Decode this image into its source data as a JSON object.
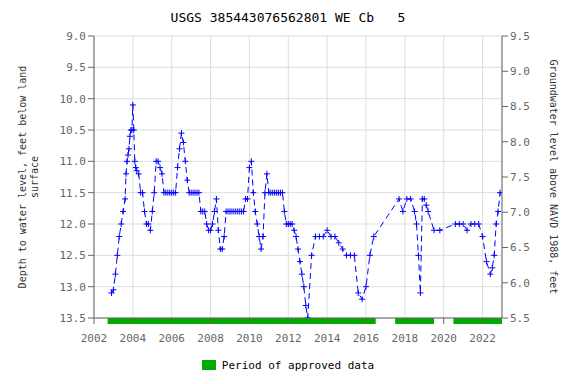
{
  "chart_data": {
    "type": "line",
    "title": "USGS 385443076562801 WE Cb   5",
    "ylabel": "Depth to water level, feet below land\nsurface",
    "y2label": "Groundwater level above NAVD 1988, feet",
    "xlim": [
      2002,
      2023
    ],
    "xticks": [
      2002,
      2004,
      2006,
      2008,
      2010,
      2012,
      2014,
      2016,
      2018,
      2020,
      2022
    ],
    "ylim": [
      13.5,
      9.0
    ],
    "yticks": [
      {
        "value": 9,
        "label": "9.0"
      },
      9.5,
      {
        "value": 10,
        "label": "10.0"
      },
      10.5,
      {
        "value": 11,
        "label": "11.0"
      },
      11.5,
      {
        "value": 12,
        "label": "12.0"
      },
      12.5,
      {
        "value": 13,
        "label": "13.0"
      },
      13.5
    ],
    "y2lim": [
      5.5,
      9.5
    ],
    "y2ticks": [
      9.5,
      {
        "value": 9,
        "label": "9.0"
      },
      8.5,
      {
        "value": 8,
        "label": "8.0"
      },
      7.5,
      {
        "value": 7,
        "label": "7.0"
      },
      6.5,
      {
        "value": 6,
        "label": "6.0"
      },
      5.5
    ],
    "grid": true,
    "legend": "bottom",
    "x": [
      2002.9,
      2003.0,
      2003.1,
      2003.2,
      2003.3,
      2003.4,
      2003.5,
      2003.6,
      2003.65,
      2003.7,
      2003.75,
      2003.8,
      2003.85,
      2003.9,
      2003.95,
      2004.0,
      2004.05,
      2004.1,
      2004.15,
      2004.2,
      2004.3,
      2004.4,
      2004.5,
      2004.6,
      2004.7,
      2004.8,
      2004.9,
      2005.0,
      2005.1,
      2005.2,
      2005.3,
      2005.4,
      2005.5,
      2005.6,
      2005.7,
      2005.8,
      2005.9,
      2006.0,
      2006.1,
      2006.2,
      2006.3,
      2006.4,
      2006.5,
      2006.6,
      2006.7,
      2006.8,
      2006.9,
      2007.0,
      2007.1,
      2007.2,
      2007.3,
      2007.4,
      2007.5,
      2007.6,
      2007.7,
      2007.8,
      2007.9,
      2008.0,
      2008.1,
      2008.2,
      2008.3,
      2008.4,
      2008.5,
      2008.6,
      2008.7,
      2008.8,
      2008.9,
      2009.0,
      2009.1,
      2009.2,
      2009.3,
      2009.4,
      2009.5,
      2009.6,
      2009.7,
      2009.8,
      2009.9,
      2010.0,
      2010.1,
      2010.2,
      2010.3,
      2010.4,
      2010.5,
      2010.6,
      2010.7,
      2010.8,
      2010.9,
      2011.0,
      2011.1,
      2011.2,
      2011.3,
      2011.4,
      2011.5,
      2011.6,
      2011.7,
      2011.8,
      2011.9,
      2012.0,
      2012.1,
      2012.2,
      2012.3,
      2012.4,
      2012.5,
      2012.6,
      2012.7,
      2012.8,
      2012.9,
      2013.0,
      2013.2,
      2013.4,
      2013.6,
      2013.8,
      2014.0,
      2014.2,
      2014.4,
      2014.6,
      2014.8,
      2015.0,
      2015.2,
      2015.4,
      2015.6,
      2015.8,
      2016.0,
      2016.2,
      2016.4,
      2017.7,
      2017.9,
      2018.1,
      2018.3,
      2018.5,
      2018.6,
      2018.7,
      2018.8,
      2018.9,
      2019.0,
      2019.1,
      2019.2,
      2019.5,
      2019.8,
      2020.6,
      2020.8,
      2021.0,
      2021.2,
      2021.4,
      2021.6,
      2021.8,
      2022.0,
      2022.2,
      2022.4,
      2022.5,
      2022.6,
      2022.7,
      2022.8,
      2022.9
    ],
    "series": [
      {
        "type": "line",
        "color": "#0000ff",
        "marker": "plus",
        "line_style": "dashed",
        "values": [
          13.1,
          13.05,
          12.8,
          12.5,
          12.2,
          12.0,
          11.8,
          11.6,
          11.2,
          11.0,
          10.9,
          10.8,
          10.6,
          10.5,
          10.5,
          10.1,
          10.5,
          11.0,
          11.1,
          11.15,
          11.2,
          11.5,
          11.5,
          11.8,
          12.0,
          12.0,
          12.1,
          11.8,
          11.5,
          11.0,
          11.0,
          11.1,
          11.2,
          11.5,
          11.5,
          11.5,
          11.5,
          11.5,
          11.5,
          11.5,
          11.1,
          10.8,
          10.55,
          10.7,
          11.0,
          11.3,
          11.5,
          11.5,
          11.5,
          11.5,
          11.5,
          11.5,
          11.8,
          11.8,
          11.8,
          12.0,
          12.1,
          12.1,
          12.0,
          11.8,
          11.6,
          12.1,
          12.4,
          12.4,
          12.2,
          11.8,
          11.8,
          11.8,
          11.8,
          11.8,
          11.8,
          11.8,
          11.8,
          11.8,
          11.8,
          11.6,
          11.6,
          11.1,
          11.0,
          11.5,
          11.8,
          12.0,
          12.2,
          12.4,
          12.2,
          11.5,
          11.2,
          11.5,
          11.5,
          11.5,
          11.5,
          11.5,
          11.5,
          11.5,
          11.5,
          11.8,
          12.0,
          12.0,
          12.0,
          12.0,
          12.1,
          12.2,
          12.4,
          12.6,
          12.8,
          13.0,
          13.3,
          13.5,
          12.5,
          12.2,
          12.2,
          12.2,
          12.1,
          12.2,
          12.2,
          12.3,
          12.4,
          12.5,
          12.5,
          12.5,
          13.1,
          13.2,
          13.0,
          12.5,
          12.2,
          11.6,
          11.8,
          11.6,
          11.6,
          11.8,
          12.0,
          12.5,
          13.1,
          11.6,
          11.6,
          11.7,
          11.8,
          12.1,
          12.1,
          12.0,
          12.0,
          12.0,
          12.1,
          12.0,
          12.0,
          12.0,
          12.2,
          12.6,
          12.8,
          12.7,
          12.5,
          12.0,
          11.8,
          11.5
        ]
      },
      {
        "name": "Period of approved data",
        "type": "span",
        "color": "#00aa00",
        "periods": [
          [
            2002.7,
            2016.5
          ],
          [
            2017.5,
            2019.5
          ],
          [
            2020.5,
            2023.0
          ]
        ]
      }
    ]
  }
}
